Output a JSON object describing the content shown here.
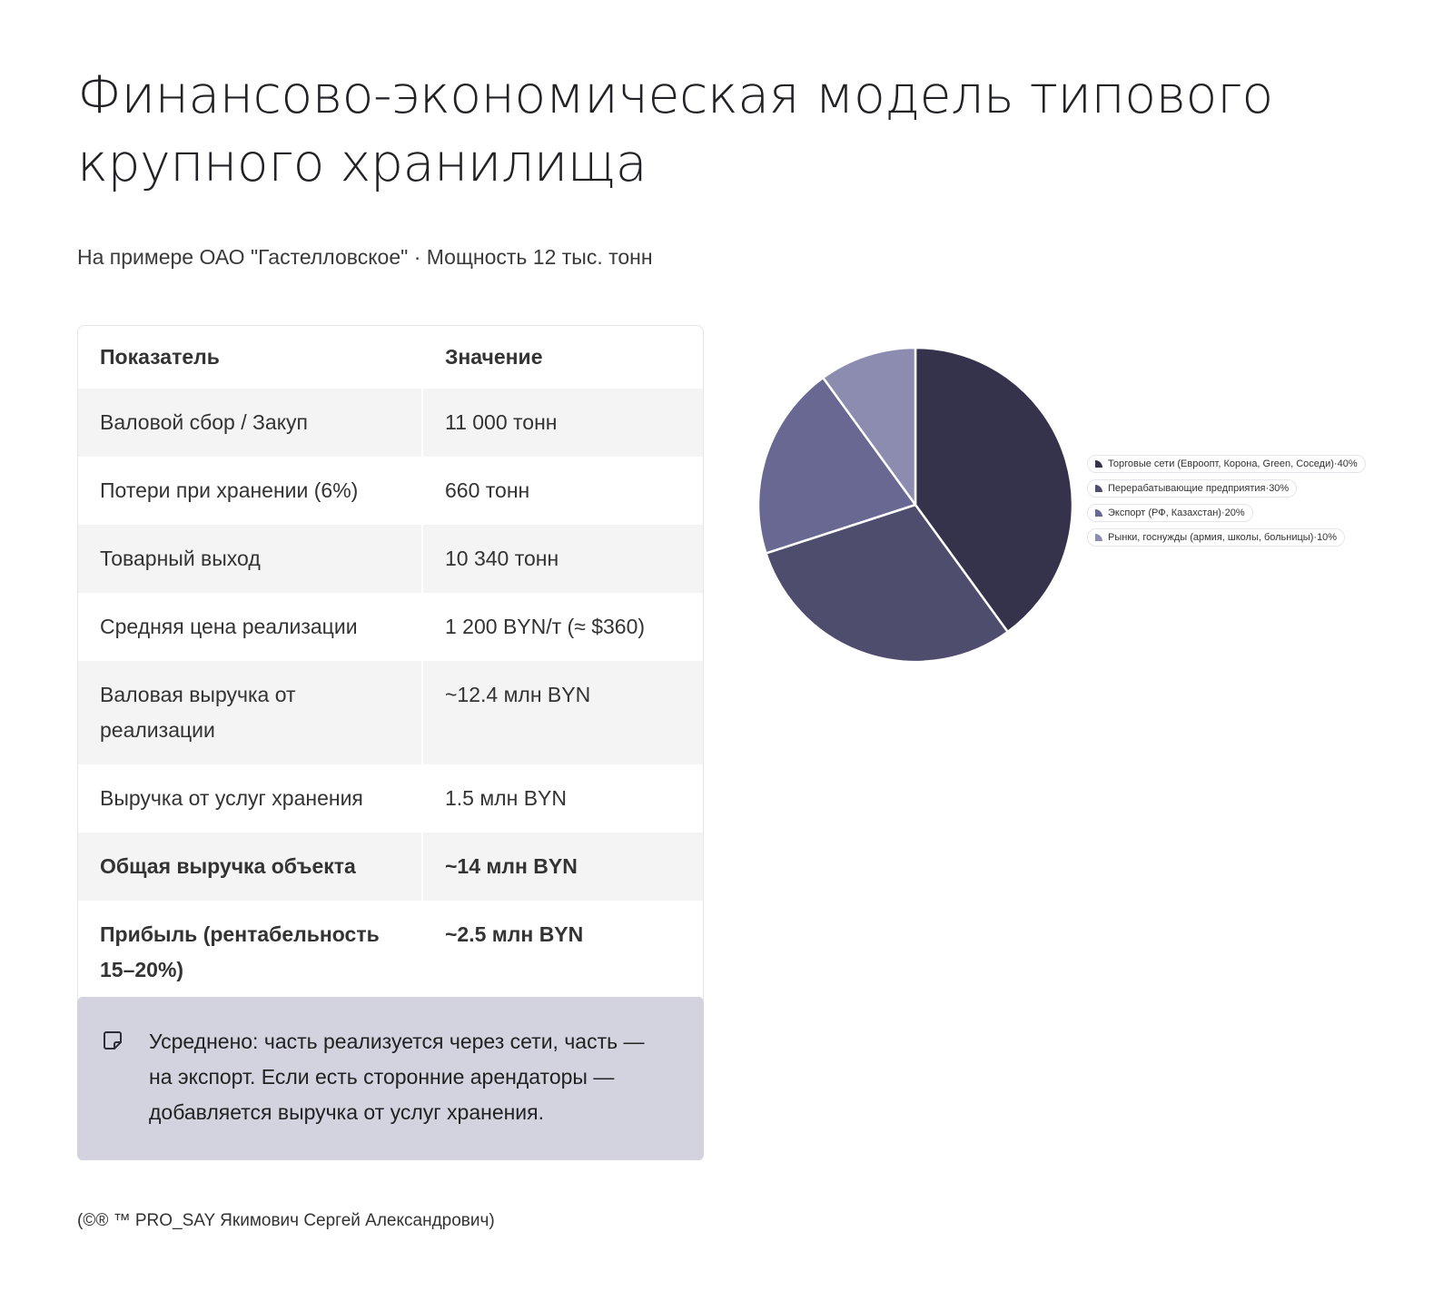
{
  "header": {
    "title": "Финансово-экономическая модель типового крупного хранилища",
    "subtitle": "На примере ОАО \"Гастелловское\" · Мощность 12 тыс. тонн"
  },
  "table": {
    "headers": [
      "Показатель",
      "Значение"
    ],
    "rows": [
      {
        "label": "Валовой сбор / Закуп",
        "value": "11 000 тонн",
        "bold": false
      },
      {
        "label": "Потери при хранении (6%)",
        "value": "660 тонн",
        "bold": false
      },
      {
        "label": "Товарный выход",
        "value": "10 340 тонн",
        "bold": false
      },
      {
        "label": "Средняя цена реализации",
        "value": "1 200 BYN/т (≈ $360)",
        "bold": false
      },
      {
        "label": "Валовая выручка от реализации",
        "value": "~12.4 млн BYN",
        "bold": false
      },
      {
        "label": "Выручка от услуг хранения",
        "value": "1.5 млн BYN",
        "bold": false
      },
      {
        "label": "Общая выручка объекта",
        "value": "~14 млн BYN",
        "bold": true
      },
      {
        "label": "Прибыль (рентабельность 15–20%)",
        "value": "~2.5 млн BYN",
        "bold": true
      }
    ]
  },
  "note": {
    "icon": "note-icon",
    "text": "Усреднено: часть реализуется через сети, часть — на экспорт. Если есть сторонние арендаторы — добавляется выручка от услуг хранения."
  },
  "footer": {
    "text": "(©® ™ PRO_SAY Якимович Сергей Александрович)"
  },
  "chart_data": {
    "type": "pie",
    "categories": [
      "Торговые сети (Евроопт, Корона, Green, Соседи)",
      "Перерабатывающие предприятия",
      "Экспорт (РФ, Казахстан)",
      "Рынки, госнужды (армия, школы, больницы)"
    ],
    "values": [
      40,
      30,
      20,
      10
    ],
    "value_labels": [
      "40%",
      "30%",
      "20%",
      "10%"
    ],
    "colors": [
      "#34334b",
      "#4f4d6e",
      "#686892",
      "#8c8bb0"
    ],
    "legend_placement": "right"
  }
}
